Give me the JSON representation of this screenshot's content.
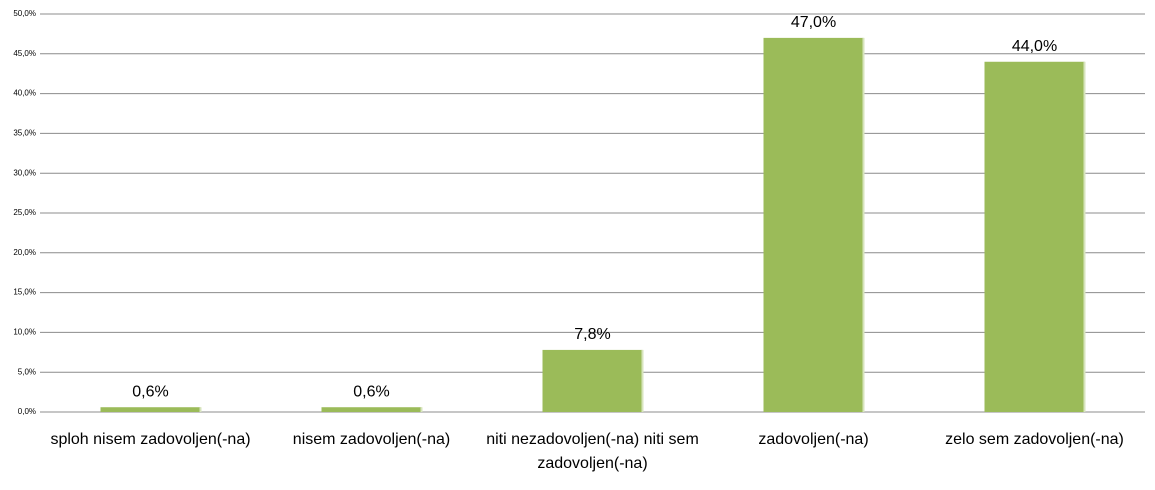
{
  "chart_data": {
    "type": "bar",
    "categories": [
      "sploh nisem zadovoljen(-na)",
      "nisem zadovoljen(-na)",
      "niti nezadovoljen(-na) niti sem zadovoljen(-na)",
      "zadovoljen(-na)",
      "zelo sem zadovoljen(-na)"
    ],
    "values": [
      0.6,
      0.6,
      7.8,
      47.0,
      44.0
    ],
    "value_labels": [
      "0,6%",
      "0,6%",
      "7,8%",
      "47,0%",
      "44,0%"
    ],
    "color": "#9bbb59",
    "ylim": [
      0,
      50
    ],
    "yticks": [
      {
        "value": 0,
        "label": "0,0%"
      },
      {
        "value": 5,
        "label": "5,0%"
      },
      {
        "value": 10,
        "label": "10,0%"
      },
      {
        "value": 15,
        "label": "15,0%"
      },
      {
        "value": 20,
        "label": "20,0%"
      },
      {
        "value": 25,
        "label": "25,0%"
      },
      {
        "value": 30,
        "label": "30,0%"
      },
      {
        "value": 35,
        "label": "35,0%"
      },
      {
        "value": 40,
        "label": "40,0%"
      },
      {
        "value": 45,
        "label": "45,0%"
      },
      {
        "value": 50,
        "label": "50,0%"
      }
    ],
    "grid": true
  }
}
